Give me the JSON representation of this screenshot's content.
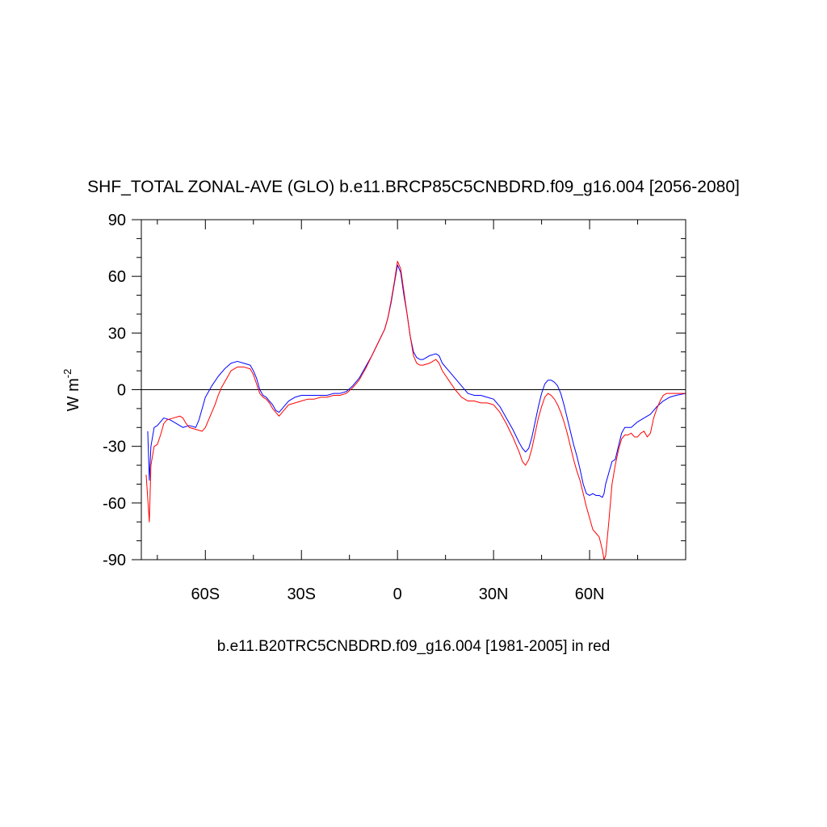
{
  "chart_data": {
    "type": "line",
    "title": "SHF_TOTAL ZONAL-AVE (GLO) b.e11.BRCP85C5CNBDRD.f09_g16.004 [2056-2080]",
    "ylabel": {
      "base": "W m",
      "superscript": "-2"
    },
    "caption": "b.e11.B20TRC5CNBDRD.f09_g16.004 [1981-2005] in red",
    "xlim": [
      -80,
      90
    ],
    "ylim": [
      -90,
      90
    ],
    "x_ticks": [
      {
        "value": -60,
        "label": "60S"
      },
      {
        "value": -30,
        "label": "30S"
      },
      {
        "value": 0,
        "label": "0"
      },
      {
        "value": 30,
        "label": "30N"
      },
      {
        "value": 60,
        "label": "60N"
      }
    ],
    "y_ticks": [
      {
        "value": 90,
        "label": "90"
      },
      {
        "value": 60,
        "label": "60"
      },
      {
        "value": 30,
        "label": "30"
      },
      {
        "value": 0,
        "label": "0"
      },
      {
        "value": -30,
        "label": "-30"
      },
      {
        "value": -60,
        "label": "-60"
      },
      {
        "value": -90,
        "label": "-90"
      }
    ],
    "zero_line": 0,
    "grid": false,
    "series": [
      {
        "color": "#0000ff",
        "points": [
          [
            -78,
            -22
          ],
          [
            -77.5,
            -48
          ],
          [
            -77,
            -30
          ],
          [
            -76,
            -20
          ],
          [
            -75,
            -19
          ],
          [
            -73,
            -15
          ],
          [
            -71,
            -16
          ],
          [
            -69,
            -18
          ],
          [
            -67,
            -20
          ],
          [
            -65,
            -19
          ],
          [
            -63,
            -20
          ],
          [
            -62,
            -16
          ],
          [
            -61,
            -10
          ],
          [
            -60,
            -4
          ],
          [
            -58,
            2
          ],
          [
            -56,
            7
          ],
          [
            -54,
            11
          ],
          [
            -52,
            14
          ],
          [
            -50,
            15
          ],
          [
            -48,
            14
          ],
          [
            -46,
            13
          ],
          [
            -45,
            10
          ],
          [
            -44,
            6
          ],
          [
            -43,
            0
          ],
          [
            -42,
            -3
          ],
          [
            -41,
            -4
          ],
          [
            -40,
            -6
          ],
          [
            -39,
            -8
          ],
          [
            -38,
            -11
          ],
          [
            -37,
            -12
          ],
          [
            -36,
            -10
          ],
          [
            -35,
            -8
          ],
          [
            -34,
            -6
          ],
          [
            -33,
            -5
          ],
          [
            -32,
            -4
          ],
          [
            -30,
            -3
          ],
          [
            -28,
            -3
          ],
          [
            -26,
            -3
          ],
          [
            -24,
            -3
          ],
          [
            -22,
            -3
          ],
          [
            -20,
            -2
          ],
          [
            -18,
            -2
          ],
          [
            -16,
            -1
          ],
          [
            -14,
            2
          ],
          [
            -12,
            6
          ],
          [
            -10,
            12
          ],
          [
            -8,
            18
          ],
          [
            -6,
            25
          ],
          [
            -4,
            32
          ],
          [
            -3,
            38
          ],
          [
            -2,
            46
          ],
          [
            -1,
            56
          ],
          [
            0,
            66
          ],
          [
            1,
            62
          ],
          [
            2,
            50
          ],
          [
            3,
            40
          ],
          [
            4,
            28
          ],
          [
            5,
            20
          ],
          [
            6,
            17
          ],
          [
            7,
            16
          ],
          [
            8,
            16
          ],
          [
            10,
            18
          ],
          [
            12,
            19
          ],
          [
            13,
            18
          ],
          [
            14,
            14
          ],
          [
            16,
            10
          ],
          [
            18,
            6
          ],
          [
            20,
            2
          ],
          [
            22,
            -2
          ],
          [
            24,
            -3
          ],
          [
            26,
            -3
          ],
          [
            28,
            -4
          ],
          [
            30,
            -5
          ],
          [
            32,
            -9
          ],
          [
            34,
            -15
          ],
          [
            36,
            -21
          ],
          [
            38,
            -28
          ],
          [
            39,
            -31
          ],
          [
            40,
            -33
          ],
          [
            41,
            -31
          ],
          [
            42,
            -25
          ],
          [
            43,
            -17
          ],
          [
            44,
            -9
          ],
          [
            45,
            -2
          ],
          [
            46,
            3
          ],
          [
            47,
            5
          ],
          [
            48,
            5
          ],
          [
            49,
            4
          ],
          [
            50,
            2
          ],
          [
            51,
            -2
          ],
          [
            52,
            -8
          ],
          [
            53,
            -15
          ],
          [
            54,
            -22
          ],
          [
            55,
            -29
          ],
          [
            56,
            -35
          ],
          [
            57,
            -42
          ],
          [
            58,
            -50
          ],
          [
            59,
            -55
          ],
          [
            60,
            -56
          ],
          [
            61,
            -55
          ],
          [
            62,
            -56
          ],
          [
            63,
            -56
          ],
          [
            64,
            -57
          ],
          [
            64.5,
            -55
          ],
          [
            65,
            -50
          ],
          [
            66,
            -44
          ],
          [
            67,
            -38
          ],
          [
            68,
            -37
          ],
          [
            69,
            -30
          ],
          [
            70,
            -23
          ],
          [
            71,
            -20
          ],
          [
            73,
            -20
          ],
          [
            75,
            -17
          ],
          [
            77,
            -15
          ],
          [
            79,
            -13
          ],
          [
            81,
            -9
          ],
          [
            83,
            -6
          ],
          [
            85,
            -4
          ],
          [
            87,
            -3
          ],
          [
            90,
            -2
          ]
        ]
      },
      {
        "color": "#ff0000",
        "points": [
          [
            -78.5,
            -45
          ],
          [
            -77.5,
            -70
          ],
          [
            -77,
            -40
          ],
          [
            -76,
            -30
          ],
          [
            -75,
            -29
          ],
          [
            -74,
            -24
          ],
          [
            -73,
            -18
          ],
          [
            -72,
            -16
          ],
          [
            -70,
            -15
          ],
          [
            -68,
            -14
          ],
          [
            -67,
            -15
          ],
          [
            -66,
            -18
          ],
          [
            -65,
            -20
          ],
          [
            -63,
            -21
          ],
          [
            -61,
            -22
          ],
          [
            -60,
            -20
          ],
          [
            -59,
            -16
          ],
          [
            -58,
            -12
          ],
          [
            -57,
            -8
          ],
          [
            -56,
            -3
          ],
          [
            -55,
            1
          ],
          [
            -54,
            4
          ],
          [
            -53,
            7
          ],
          [
            -52,
            10
          ],
          [
            -50,
            12
          ],
          [
            -48,
            12
          ],
          [
            -46,
            11
          ],
          [
            -45,
            8
          ],
          [
            -44,
            3
          ],
          [
            -43,
            -2
          ],
          [
            -42,
            -4
          ],
          [
            -41,
            -5
          ],
          [
            -40,
            -7
          ],
          [
            -39,
            -10
          ],
          [
            -38,
            -12
          ],
          [
            -37,
            -14
          ],
          [
            -36,
            -12
          ],
          [
            -35,
            -10
          ],
          [
            -34,
            -8
          ],
          [
            -32,
            -7
          ],
          [
            -30,
            -6
          ],
          [
            -28,
            -5
          ],
          [
            -26,
            -5
          ],
          [
            -24,
            -4
          ],
          [
            -22,
            -4
          ],
          [
            -20,
            -3
          ],
          [
            -18,
            -3
          ],
          [
            -16,
            -2
          ],
          [
            -14,
            1
          ],
          [
            -12,
            5
          ],
          [
            -10,
            11
          ],
          [
            -8,
            18
          ],
          [
            -6,
            25
          ],
          [
            -4,
            32
          ],
          [
            -3,
            38
          ],
          [
            -2,
            47
          ],
          [
            -1,
            57
          ],
          [
            0,
            68
          ],
          [
            1,
            64
          ],
          [
            2,
            52
          ],
          [
            3,
            40
          ],
          [
            4,
            28
          ],
          [
            5,
            18
          ],
          [
            6,
            14
          ],
          [
            7,
            13
          ],
          [
            8,
            13
          ],
          [
            10,
            14
          ],
          [
            12,
            16
          ],
          [
            13,
            14
          ],
          [
            14,
            10
          ],
          [
            16,
            5
          ],
          [
            18,
            0
          ],
          [
            20,
            -4
          ],
          [
            22,
            -6
          ],
          [
            24,
            -6
          ],
          [
            26,
            -7
          ],
          [
            28,
            -7
          ],
          [
            30,
            -8
          ],
          [
            32,
            -12
          ],
          [
            34,
            -18
          ],
          [
            36,
            -25
          ],
          [
            38,
            -33
          ],
          [
            39,
            -38
          ],
          [
            40,
            -40
          ],
          [
            41,
            -37
          ],
          [
            42,
            -31
          ],
          [
            43,
            -23
          ],
          [
            44,
            -15
          ],
          [
            45,
            -9
          ],
          [
            46,
            -4
          ],
          [
            47,
            -2
          ],
          [
            48,
            -3
          ],
          [
            49,
            -5
          ],
          [
            50,
            -8
          ],
          [
            51,
            -12
          ],
          [
            52,
            -17
          ],
          [
            53,
            -23
          ],
          [
            54,
            -30
          ],
          [
            55,
            -37
          ],
          [
            56,
            -43
          ],
          [
            57,
            -48
          ],
          [
            58,
            -55
          ],
          [
            59,
            -62
          ],
          [
            60,
            -68
          ],
          [
            61,
            -74
          ],
          [
            62,
            -76
          ],
          [
            63,
            -78
          ],
          [
            64,
            -85
          ],
          [
            64.5,
            -90
          ],
          [
            65,
            -88
          ],
          [
            66,
            -70
          ],
          [
            67,
            -50
          ],
          [
            68,
            -40
          ],
          [
            69,
            -32
          ],
          [
            70,
            -26
          ],
          [
            71,
            -24
          ],
          [
            72,
            -24
          ],
          [
            73,
            -23
          ],
          [
            74,
            -25
          ],
          [
            75,
            -25
          ],
          [
            76,
            -23
          ],
          [
            77,
            -22
          ],
          [
            78,
            -25
          ],
          [
            79,
            -23
          ],
          [
            80,
            -15
          ],
          [
            81,
            -10
          ],
          [
            82,
            -6
          ],
          [
            83,
            -3
          ],
          [
            84,
            -2
          ],
          [
            86,
            -2
          ],
          [
            88,
            -2
          ],
          [
            90,
            -2
          ]
        ]
      }
    ]
  }
}
